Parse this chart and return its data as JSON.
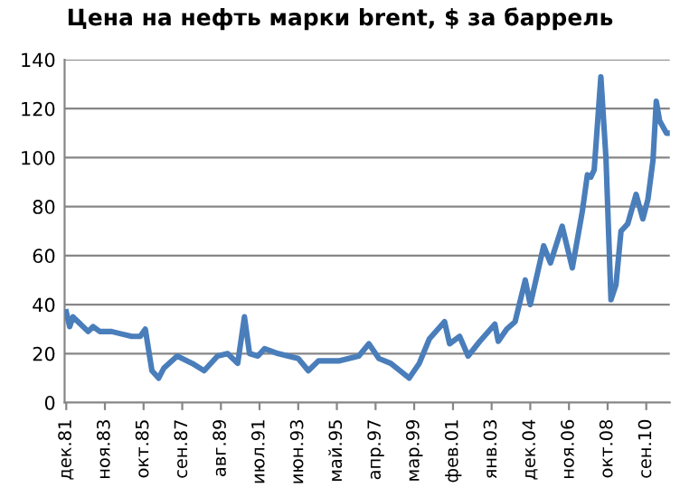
{
  "chart_data": {
    "type": "line",
    "title": "Цена на нефть марки brent, $ за баррель",
    "x": [
      "1981-12",
      "1982-02",
      "1982-04",
      "1982-07",
      "1983-01",
      "1983-04",
      "1983-08",
      "1984-03",
      "1984-09",
      "1985-03",
      "1985-08",
      "1985-11",
      "1986-03",
      "1986-07",
      "1986-10",
      "1987-06",
      "1988-03",
      "1988-10",
      "1989-06",
      "1989-12",
      "1990-06",
      "1990-10",
      "1991-01",
      "1991-06",
      "1991-10",
      "1992-06",
      "1993-06",
      "1993-12",
      "1994-06",
      "1995-06",
      "1996-06",
      "1996-12",
      "1997-06",
      "1998-01",
      "1998-12",
      "1999-06",
      "1999-12",
      "2000-09",
      "2000-12",
      "2001-06",
      "2001-11",
      "2002-06",
      "2003-03",
      "2003-05",
      "2003-10",
      "2004-03",
      "2004-09",
      "2004-12",
      "2005-08",
      "2005-12",
      "2006-07",
      "2007-01",
      "2007-07",
      "2007-10",
      "2007-12",
      "2008-02",
      "2008-06",
      "2008-09",
      "2008-12",
      "2009-03",
      "2009-06",
      "2009-10",
      "2010-03",
      "2010-07",
      "2010-10",
      "2011-01",
      "2011-03",
      "2011-05",
      "2011-09",
      "2011-10"
    ],
    "series": [
      {
        "color": "#4a7ebb",
        "values": [
          37,
          31,
          35,
          33,
          29,
          31,
          29,
          29,
          28,
          27,
          27,
          30,
          13,
          10,
          14,
          19,
          16,
          13,
          19,
          20,
          16,
          35,
          20,
          19,
          22,
          20,
          18,
          13,
          17,
          17,
          19,
          24,
          18,
          16,
          10,
          16,
          26,
          33,
          24,
          27,
          19,
          25,
          32,
          25,
          30,
          33,
          50,
          40,
          64,
          57,
          72,
          55,
          78,
          93,
          92,
          95,
          133,
          100,
          42,
          48,
          70,
          73,
          85,
          75,
          83,
          99,
          123,
          115,
          110,
          110
        ]
      }
    ],
    "xlim": [
      "1981-11",
      "2011-11"
    ],
    "xticks": [
      {
        "value": "1981-12",
        "label": "дек.81"
      },
      {
        "value": "1983-11",
        "label": "ноя.83"
      },
      {
        "value": "1985-10",
        "label": "окт.85"
      },
      {
        "value": "1987-09",
        "label": "сен.87"
      },
      {
        "value": "1989-08",
        "label": "авг.89"
      },
      {
        "value": "1991-07",
        "label": "июл.91"
      },
      {
        "value": "1993-06",
        "label": "июн.93"
      },
      {
        "value": "1995-05",
        "label": "май.95"
      },
      {
        "value": "1997-04",
        "label": "апр.97"
      },
      {
        "value": "1999-03",
        "label": "мар.99"
      },
      {
        "value": "2001-02",
        "label": "фев.01"
      },
      {
        "value": "2003-01",
        "label": "янв.03"
      },
      {
        "value": "2004-12",
        "label": "дек.04"
      },
      {
        "value": "2006-11",
        "label": "ноя.06"
      },
      {
        "value": "2008-10",
        "label": "окт.08"
      },
      {
        "value": "2010-09",
        "label": "сен.10"
      }
    ],
    "ylim": [
      0,
      140
    ],
    "yticks": [
      0,
      20,
      40,
      60,
      80,
      100,
      120,
      140
    ],
    "grid": "y",
    "legend": false,
    "marker": "none",
    "line_style": "solid"
  }
}
